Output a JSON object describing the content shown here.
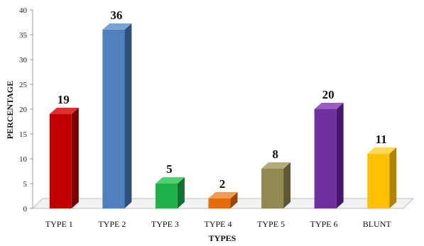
{
  "chart_data": {
    "type": "bar",
    "title": "",
    "xlabel": "TYPES",
    "ylabel": "PERCENTAGE",
    "categories": [
      "TYPE 1",
      "TYPE 2",
      "TYPE 3",
      "TYPE 4",
      "TYPE 5",
      "TYPE 6",
      "BLUNT"
    ],
    "values": [
      19,
      36,
      5,
      2,
      8,
      20,
      11
    ],
    "data_labels": [
      "19",
      "36",
      "5",
      "2",
      "8",
      "20",
      "11"
    ],
    "ylim": [
      0,
      40
    ],
    "yticks": [
      "0",
      "5",
      "10",
      "15",
      "20",
      "25",
      "30",
      "35",
      "40"
    ],
    "grid": false,
    "legend": "none",
    "colors": [
      "#c00000",
      "#4f81bd",
      "#1fb04a",
      "#e46c0a",
      "#938953",
      "#7030a0",
      "#ffc000"
    ],
    "depth_colors": [
      "#7a0000",
      "#2c4f7c",
      "#137030",
      "#9a4506",
      "#5e5734",
      "#46186a",
      "#b08400"
    ],
    "top_colors": [
      "#e03030",
      "#7aa3d6",
      "#4cd271",
      "#f59a4a",
      "#b3ab78",
      "#9c5cc7",
      "#ffd955"
    ]
  }
}
